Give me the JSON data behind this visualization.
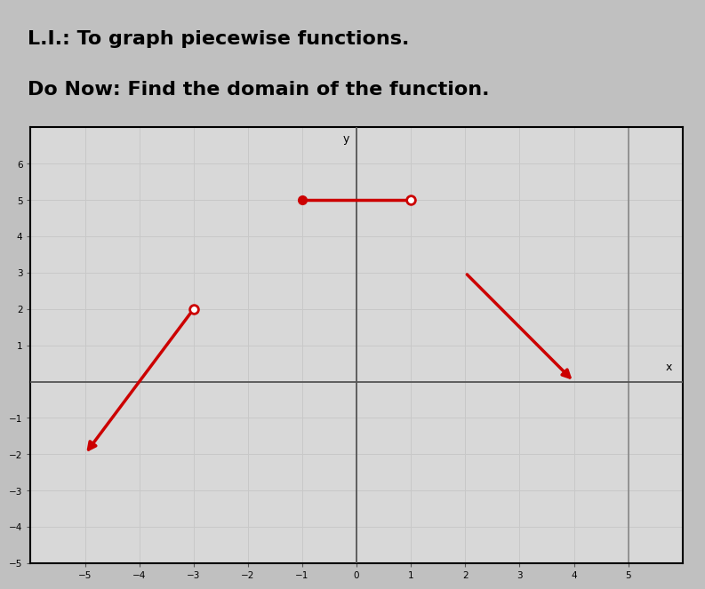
{
  "title_line1": "L.I.: To graph piecewise functions.",
  "title_line2": "Do Now: Find the domain of the function.",
  "title_fontsize": 16,
  "xlim": [
    -6,
    6
  ],
  "ylim": [
    -5,
    7
  ],
  "xticks": [
    -5,
    -4,
    -3,
    -2,
    -1,
    0,
    1,
    2,
    3,
    4,
    5
  ],
  "yticks": [
    -5,
    -4,
    -3,
    -2,
    -1,
    1,
    2,
    3,
    4,
    5,
    6
  ],
  "segment1": {
    "x": [
      -1,
      1
    ],
    "y": [
      5,
      5
    ],
    "color": "#cc0000",
    "linewidth": 2.5,
    "start_filled": true,
    "end_open": true
  },
  "segment2": {
    "x": [
      -3,
      -5
    ],
    "y": [
      2,
      -2
    ],
    "color": "#cc0000",
    "linewidth": 2.5,
    "start_open": true,
    "arrow_end": true
  },
  "segment3": {
    "x": [
      2,
      4
    ],
    "y": [
      3,
      0
    ],
    "color": "#cc0000",
    "linewidth": 2.5,
    "arrow_end": true
  },
  "vline_x": 5,
  "grid_color": "#c8c8c8",
  "axis_color": "#555555",
  "background_color": "#d8d8d8",
  "title_background": "#f5f5f0",
  "marker_size": 7
}
